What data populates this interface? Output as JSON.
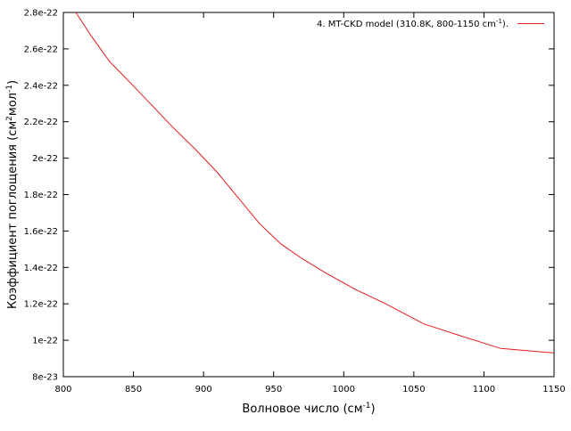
{
  "chart_data": {
    "type": "line",
    "title": "",
    "xlabel": "Волновое число (см",
    "xlabel_sup": "-1",
    "xlabel_tail": ")",
    "ylabel": "Коэффициент поглощения (см",
    "ylabel_sup1": "2",
    "ylabel_mid": "мол",
    "ylabel_sup2": "-1",
    "ylabel_tail": ")",
    "xlim": [
      800,
      1150
    ],
    "ylim": [
      8e-23,
      2.8e-22
    ],
    "x_ticks": [
      800,
      850,
      900,
      950,
      1000,
      1050,
      1100,
      1150
    ],
    "x_tick_labels": [
      "800",
      "850",
      "900",
      "950",
      "1000",
      "1050",
      "1100",
      "1150"
    ],
    "y_ticks": [
      8e-23,
      1e-22,
      1.2e-22,
      1.4e-22,
      1.6e-22,
      1.8e-22,
      2e-22,
      2.2e-22,
      2.4e-22,
      2.6e-22,
      2.8e-22
    ],
    "y_tick_labels": [
      "8e-23",
      "1e-22",
      "1.2e-22",
      "1.4e-22",
      "1.6e-22",
      "1.8e-22",
      "2e-22",
      "2.2e-22",
      "2.4e-22",
      "2.6e-22",
      "2.8e-22"
    ],
    "grid": false,
    "legend_position": "top-right",
    "series": [
      {
        "name": "4. MT-CKD model (310.8K, 800-1150 cm",
        "name_sup": "-1",
        "name_tail": ").",
        "color": "#e8191f",
        "x": [
          809,
          820,
          833,
          847,
          862,
          878,
          894,
          910,
          925,
          940,
          955,
          970,
          987,
          1008,
          1030,
          1057,
          1085,
          1112,
          1135,
          1150
        ],
        "y": [
          2.8e-22,
          2.67e-22,
          2.53e-22,
          2.42e-22,
          2.3e-22,
          2.17e-22,
          2.05e-22,
          1.92e-22,
          1.78e-22,
          1.64e-22,
          1.53e-22,
          1.45e-22,
          1.37e-22,
          1.28e-22,
          1.2e-22,
          1.09e-22,
          1.02e-22,
          9.55e-23,
          9.4e-23,
          9.3e-23
        ]
      }
    ]
  }
}
